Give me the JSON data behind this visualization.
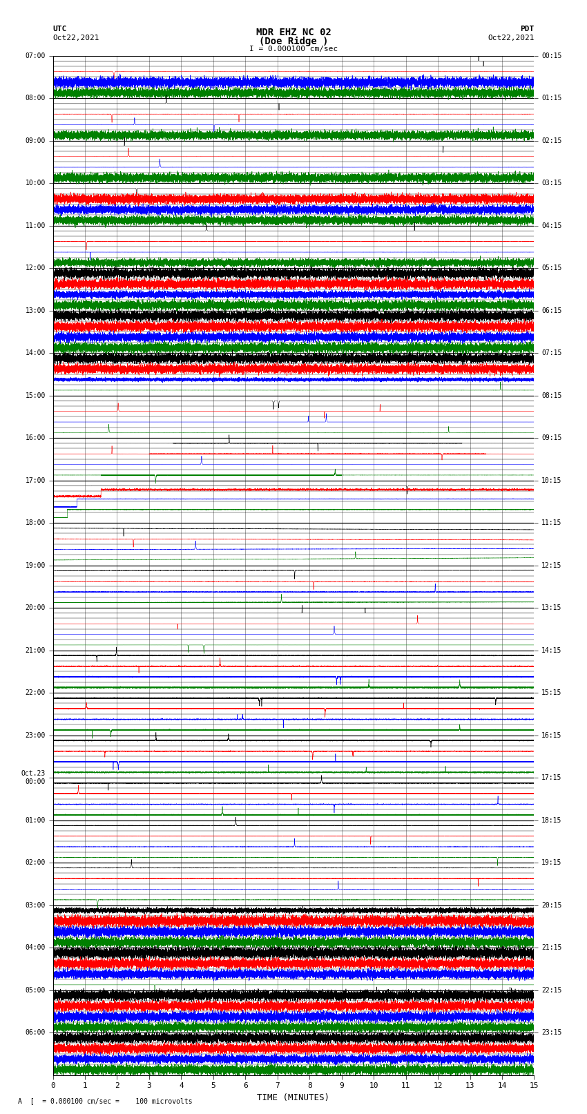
{
  "title_line1": "MDR EHZ NC 02",
  "title_line2": "(Doe Ridge )",
  "scale_label": "I = 0.000100 cm/sec",
  "footer_label": "A  [  = 0.000100 cm/sec =    100 microvolts",
  "utc_label": "UTC\nOct22,2021",
  "pdt_label": "PDT\nOct22,2021",
  "xlabel": "TIME (MINUTES)",
  "xticks": [
    0,
    1,
    2,
    3,
    4,
    5,
    6,
    7,
    8,
    9,
    10,
    11,
    12,
    13,
    14,
    15
  ],
  "left_times_utc": [
    "07:00",
    "",
    "",
    "",
    "08:00",
    "",
    "",
    "",
    "09:00",
    "",
    "",
    "",
    "10:00",
    "",
    "",
    "",
    "11:00",
    "",
    "",
    "",
    "12:00",
    "",
    "",
    "",
    "13:00",
    "",
    "",
    "",
    "14:00",
    "",
    "",
    "",
    "15:00",
    "",
    "",
    "",
    "16:00",
    "",
    "",
    "",
    "17:00",
    "",
    "",
    "",
    "18:00",
    "",
    "",
    "",
    "19:00",
    "",
    "",
    "",
    "20:00",
    "",
    "",
    "",
    "21:00",
    "",
    "",
    "",
    "22:00",
    "",
    "",
    "",
    "23:00",
    "",
    "",
    "",
    "Oct.23\n00:00",
    "",
    "",
    "",
    "01:00",
    "",
    "",
    "",
    "02:00",
    "",
    "",
    "",
    "03:00",
    "",
    "",
    "",
    "04:00",
    "",
    "",
    "",
    "05:00",
    "",
    "",
    "",
    "06:00",
    "",
    "",
    ""
  ],
  "left_times_major": [
    "07:00",
    "08:00",
    "09:00",
    "10:00",
    "11:00",
    "12:00",
    "13:00",
    "14:00",
    "15:00",
    "16:00",
    "17:00",
    "18:00",
    "19:00",
    "20:00",
    "21:00",
    "22:00",
    "23:00",
    "Oct.23\n00:00",
    "01:00",
    "02:00",
    "03:00",
    "04:00",
    "05:00",
    "06:00"
  ],
  "right_times_pdt": [
    "00:15",
    "01:15",
    "02:15",
    "03:15",
    "04:15",
    "05:15",
    "06:15",
    "07:15",
    "08:15",
    "09:15",
    "10:15",
    "11:15",
    "12:15",
    "13:15",
    "14:15",
    "15:15",
    "16:15",
    "17:15",
    "18:15",
    "19:15",
    "20:15",
    "21:15",
    "22:15",
    "23:15"
  ],
  "n_rows": 24,
  "n_traces_per_row": 4,
  "colors": [
    "black",
    "red",
    "blue",
    "green"
  ],
  "bg_color": "white",
  "minutes": 15,
  "figsize": [
    8.5,
    16.13
  ],
  "dpi": 100
}
